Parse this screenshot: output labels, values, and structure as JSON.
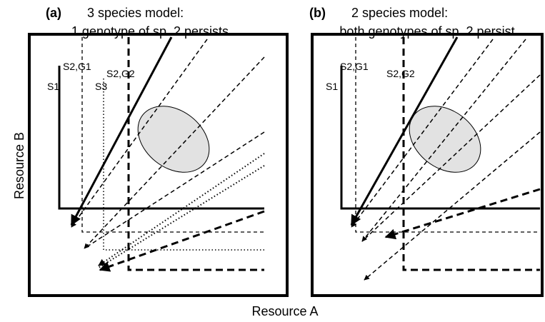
{
  "panels": [
    {
      "label": "(a)",
      "title": "3 species model:",
      "subtitle": "1 genotype of sp. 2 persists",
      "line_labels": [
        "S1",
        "S2,G1",
        "S2,G2",
        "S3"
      ]
    },
    {
      "label": "(b)",
      "title": "2 species model:",
      "subtitle": "both genotypes of sp. 2 persist",
      "line_labels": [
        "S1",
        "S2,G1",
        "S2,G2"
      ]
    }
  ],
  "axes": {
    "y_label": "Resource B",
    "x_label": "Resource A"
  }
}
